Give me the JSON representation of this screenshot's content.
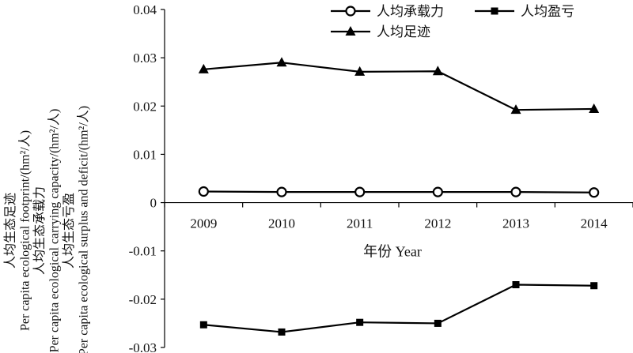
{
  "chart_data": {
    "type": "line",
    "title": "",
    "xlabel": "年份 Year",
    "ylabel_lines": [
      "人均生态足迹",
      "Per capita ecological footprint/(hm²/人)",
      "人均生态承载力",
      "Per capita ecological carrying capacity/(hm²/人)",
      "人均生态亏盈",
      "Per capita ecological surplus and deficit/(hm²/人)"
    ],
    "categories": [
      "2009",
      "2010",
      "2011",
      "2012",
      "2013",
      "2014"
    ],
    "ylim": [
      -0.03,
      0.04
    ],
    "yticks": [
      "0.04",
      "0.03",
      "0.02",
      "0.01",
      "0",
      "-0.01",
      "-0.02",
      "-0.03"
    ],
    "ytick_values": [
      0.04,
      0.03,
      0.02,
      0.01,
      0,
      -0.01,
      -0.02,
      -0.03
    ],
    "grid": false,
    "legend_position": "top-right",
    "series": [
      {
        "name": "人均承载力",
        "marker": "circle",
        "values": [
          0.0023,
          0.0022,
          0.0022,
          0.0022,
          0.0022,
          0.0021
        ]
      },
      {
        "name": "人均盈亏",
        "marker": "square",
        "values": [
          -0.0253,
          -0.0268,
          -0.0248,
          -0.025,
          -0.017,
          -0.0172
        ]
      },
      {
        "name": "人均足迹",
        "marker": "triangle",
        "values": [
          0.0276,
          0.029,
          0.0271,
          0.0272,
          0.0192,
          0.0194
        ]
      }
    ],
    "colors": {
      "line": "#000000",
      "marker_fill_circle": "#ffffff"
    }
  }
}
